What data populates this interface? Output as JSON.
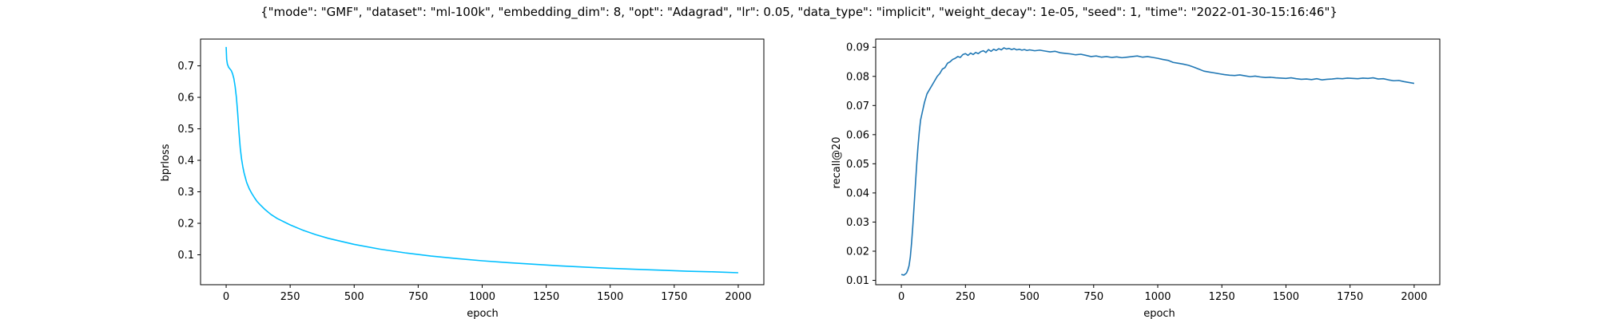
{
  "figure": {
    "suptitle": "{\"mode\": \"GMF\", \"dataset\": \"ml-100k\", \"embedding_dim\": 8, \"opt\": \"Adagrad\", \"lr\": 0.05, \"data_type\": \"implicit\", \"weight_decay\": 1e-05, \"seed\": 1, \"time\": \"2022-01-30-15:16:46\"}"
  },
  "chart_data": [
    {
      "type": "line",
      "xlabel": "epoch",
      "ylabel": "bprloss",
      "xlim": [
        -100,
        2100
      ],
      "ylim": [
        0.005,
        0.785
      ],
      "xticks": [
        0,
        250,
        500,
        750,
        1000,
        1250,
        1500,
        1750,
        2000
      ],
      "yticks": [
        0.1,
        0.2,
        0.3,
        0.4,
        0.5,
        0.6,
        0.7
      ],
      "color": "#00bfff",
      "series": [
        {
          "x": [
            0,
            2,
            5,
            10,
            15,
            20,
            25,
            30,
            35,
            40,
            45,
            50,
            55,
            60,
            65,
            70,
            75,
            80,
            90,
            100,
            110,
            120,
            135,
            150,
            175,
            200,
            250,
            300,
            350,
            400,
            500,
            600,
            700,
            800,
            900,
            1000,
            1100,
            1200,
            1300,
            1400,
            1500,
            1600,
            1700,
            1800,
            1900,
            2000
          ],
          "y": [
            0.76,
            0.72,
            0.705,
            0.695,
            0.69,
            0.685,
            0.675,
            0.66,
            0.635,
            0.6,
            0.55,
            0.49,
            0.44,
            0.405,
            0.38,
            0.36,
            0.345,
            0.33,
            0.31,
            0.295,
            0.282,
            0.27,
            0.257,
            0.245,
            0.228,
            0.215,
            0.195,
            0.178,
            0.164,
            0.152,
            0.133,
            0.118,
            0.106,
            0.096,
            0.088,
            0.081,
            0.075,
            0.07,
            0.065,
            0.061,
            0.057,
            0.054,
            0.051,
            0.048,
            0.046,
            0.043
          ]
        }
      ]
    },
    {
      "type": "line",
      "xlabel": "epoch",
      "ylabel": "recall@20",
      "xlim": [
        -100,
        2100
      ],
      "ylim": [
        0.0085,
        0.0928
      ],
      "xticks": [
        0,
        250,
        500,
        750,
        1000,
        1250,
        1500,
        1750,
        2000
      ],
      "yticks": [
        0.01,
        0.02,
        0.03,
        0.04,
        0.05,
        0.06,
        0.07,
        0.08,
        0.09
      ],
      "color": "#1f77b4",
      "series": [
        {
          "x": [
            0,
            10,
            20,
            25,
            30,
            35,
            40,
            45,
            50,
            55,
            60,
            65,
            70,
            75,
            80,
            90,
            100,
            110,
            120,
            130,
            140,
            150,
            160,
            170,
            180,
            190,
            200,
            210,
            220,
            230,
            240,
            250,
            260,
            270,
            280,
            290,
            300,
            310,
            320,
            330,
            340,
            350,
            360,
            370,
            380,
            390,
            400,
            410,
            420,
            430,
            440,
            450,
            460,
            470,
            480,
            490,
            500,
            520,
            540,
            560,
            580,
            600,
            620,
            640,
            660,
            680,
            700,
            720,
            740,
            760,
            780,
            800,
            820,
            840,
            860,
            880,
            900,
            920,
            940,
            960,
            980,
            1000,
            1020,
            1040,
            1060,
            1080,
            1100,
            1120,
            1140,
            1160,
            1180,
            1200,
            1220,
            1240,
            1260,
            1280,
            1300,
            1320,
            1340,
            1360,
            1380,
            1400,
            1420,
            1440,
            1460,
            1480,
            1500,
            1520,
            1540,
            1560,
            1580,
            1600,
            1620,
            1640,
            1660,
            1680,
            1700,
            1720,
            1740,
            1760,
            1780,
            1800,
            1820,
            1840,
            1860,
            1880,
            1900,
            1920,
            1940,
            1960,
            1980,
            2000
          ],
          "y": [
            0.012,
            0.0118,
            0.0125,
            0.0135,
            0.015,
            0.018,
            0.023,
            0.029,
            0.036,
            0.043,
            0.05,
            0.056,
            0.061,
            0.065,
            0.067,
            0.071,
            0.074,
            0.0755,
            0.077,
            0.0785,
            0.08,
            0.081,
            0.0825,
            0.083,
            0.0845,
            0.085,
            0.0858,
            0.0862,
            0.0868,
            0.0865,
            0.0875,
            0.0878,
            0.0872,
            0.088,
            0.0875,
            0.0882,
            0.0878,
            0.0885,
            0.0888,
            0.0882,
            0.0892,
            0.0886,
            0.0893,
            0.0889,
            0.0895,
            0.0891,
            0.0898,
            0.0894,
            0.0896,
            0.0892,
            0.0895,
            0.0891,
            0.0893,
            0.089,
            0.0892,
            0.0889,
            0.0891,
            0.0888,
            0.089,
            0.0887,
            0.0884,
            0.0886,
            0.0881,
            0.0879,
            0.0877,
            0.0874,
            0.0876,
            0.0872,
            0.0868,
            0.087,
            0.0866,
            0.0868,
            0.0865,
            0.0867,
            0.0864,
            0.0866,
            0.0868,
            0.087,
            0.0866,
            0.0868,
            0.0865,
            0.0862,
            0.0858,
            0.0855,
            0.0848,
            0.0845,
            0.0842,
            0.0838,
            0.0832,
            0.0825,
            0.0818,
            0.0815,
            0.0812,
            0.0809,
            0.0806,
            0.0804,
            0.0803,
            0.0805,
            0.0802,
            0.0799,
            0.0801,
            0.0798,
            0.0796,
            0.0797,
            0.0795,
            0.0794,
            0.0793,
            0.0795,
            0.0792,
            0.079,
            0.0791,
            0.0789,
            0.0792,
            0.0788,
            0.079,
            0.0791,
            0.0793,
            0.0792,
            0.0794,
            0.0793,
            0.0792,
            0.0794,
            0.0793,
            0.0795,
            0.0791,
            0.0792,
            0.0788,
            0.0785,
            0.0786,
            0.0782,
            0.0779,
            0.0776
          ]
        }
      ]
    }
  ]
}
